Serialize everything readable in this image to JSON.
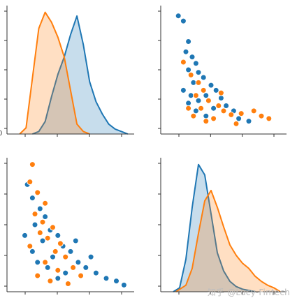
{
  "colors": {
    "blue": "#1f77b4",
    "orange": "#ff7f0e"
  },
  "watermark": "知乎 @Lucy-Fintech",
  "chart_data": [
    {
      "panel": "top-left",
      "type": "area",
      "axis_tick_label": "0",
      "grid": false,
      "series": [
        {
          "color": "blue",
          "x": [
            0.2,
            0.25,
            0.3,
            0.35,
            0.4,
            0.45,
            0.5,
            0.55,
            0.6,
            0.65,
            0.7,
            0.75,
            0.8,
            0.85,
            0.9,
            0.95
          ],
          "y": [
            0.0,
            0.02,
            0.1,
            0.3,
            0.48,
            0.62,
            0.8,
            0.95,
            0.72,
            0.42,
            0.26,
            0.16,
            0.08,
            0.04,
            0.02,
            0.0
          ]
        },
        {
          "color": "orange",
          "x": [
            0.1,
            0.15,
            0.2,
            0.25,
            0.3,
            0.35,
            0.4,
            0.45,
            0.5,
            0.55,
            0.6,
            0.65
          ],
          "y": [
            0.0,
            0.05,
            0.45,
            0.85,
            0.98,
            0.9,
            0.78,
            0.62,
            0.35,
            0.08,
            0.02,
            0.0
          ]
        }
      ]
    },
    {
      "panel": "top-right",
      "type": "scatter",
      "grid": false,
      "series": [
        {
          "color": "blue",
          "points": [
            [
              0.14,
              0.92
            ],
            [
              0.18,
              0.88
            ],
            [
              0.22,
              0.72
            ],
            [
              0.2,
              0.64
            ],
            [
              0.25,
              0.6
            ],
            [
              0.28,
              0.55
            ],
            [
              0.22,
              0.5
            ],
            [
              0.3,
              0.48
            ],
            [
              0.34,
              0.44
            ],
            [
              0.26,
              0.4
            ],
            [
              0.4,
              0.38
            ],
            [
              0.44,
              0.34
            ],
            [
              0.36,
              0.3
            ],
            [
              0.3,
              0.26
            ],
            [
              0.22,
              0.24
            ],
            [
              0.48,
              0.28
            ],
            [
              0.52,
              0.22
            ],
            [
              0.28,
              0.18
            ],
            [
              0.36,
              0.14
            ],
            [
              0.58,
              0.18
            ],
            [
              0.62,
              0.12
            ],
            [
              0.7,
              0.1
            ],
            [
              0.18,
              0.34
            ],
            [
              0.24,
              0.3
            ],
            [
              0.42,
              0.2
            ]
          ]
        },
        {
          "color": "orange",
          "points": [
            [
              0.18,
              0.56
            ],
            [
              0.24,
              0.46
            ],
            [
              0.3,
              0.4
            ],
            [
              0.34,
              0.34
            ],
            [
              0.28,
              0.3
            ],
            [
              0.38,
              0.26
            ],
            [
              0.46,
              0.22
            ],
            [
              0.32,
              0.2
            ],
            [
              0.5,
              0.18
            ],
            [
              0.56,
              0.15
            ],
            [
              0.42,
              0.12
            ],
            [
              0.64,
              0.16
            ],
            [
              0.74,
              0.18
            ],
            [
              0.8,
              0.14
            ],
            [
              0.86,
              0.12
            ],
            [
              0.26,
              0.14
            ],
            [
              0.36,
              0.1
            ],
            [
              0.22,
              0.2
            ],
            [
              0.6,
              0.08
            ],
            [
              0.48,
              0.32
            ]
          ]
        }
      ]
    },
    {
      "panel": "bottom-left",
      "type": "scatter",
      "grid": false,
      "series": [
        {
          "color": "blue",
          "points": [
            [
              0.16,
              0.8
            ],
            [
              0.2,
              0.7
            ],
            [
              0.26,
              0.62
            ],
            [
              0.3,
              0.56
            ],
            [
              0.22,
              0.5
            ],
            [
              0.34,
              0.46
            ],
            [
              0.4,
              0.42
            ],
            [
              0.28,
              0.38
            ],
            [
              0.44,
              0.34
            ],
            [
              0.5,
              0.3
            ],
            [
              0.36,
              0.26
            ],
            [
              0.24,
              0.22
            ],
            [
              0.56,
              0.22
            ],
            [
              0.62,
              0.18
            ],
            [
              0.7,
              0.14
            ],
            [
              0.78,
              0.1
            ],
            [
              0.86,
              0.08
            ],
            [
              0.92,
              0.05
            ],
            [
              0.32,
              0.18
            ],
            [
              0.46,
              0.14
            ],
            [
              0.2,
              0.3
            ],
            [
              0.54,
              0.38
            ],
            [
              0.4,
              0.1
            ],
            [
              0.66,
              0.26
            ],
            [
              0.14,
              0.42
            ]
          ]
        },
        {
          "color": "orange",
          "points": [
            [
              0.2,
              0.95
            ],
            [
              0.18,
              0.82
            ],
            [
              0.24,
              0.74
            ],
            [
              0.3,
              0.66
            ],
            [
              0.22,
              0.58
            ],
            [
              0.28,
              0.52
            ],
            [
              0.36,
              0.48
            ],
            [
              0.26,
              0.44
            ],
            [
              0.32,
              0.4
            ],
            [
              0.42,
              0.36
            ],
            [
              0.18,
              0.34
            ],
            [
              0.38,
              0.3
            ],
            [
              0.46,
              0.26
            ],
            [
              0.3,
              0.22
            ],
            [
              0.52,
              0.18
            ],
            [
              0.4,
              0.16
            ],
            [
              0.24,
              0.12
            ],
            [
              0.58,
              0.12
            ],
            [
              0.34,
              0.08
            ],
            [
              0.48,
              0.06
            ]
          ]
        }
      ]
    },
    {
      "panel": "bottom-right",
      "type": "area",
      "grid": false,
      "series": [
        {
          "color": "blue",
          "x": [
            0.1,
            0.15,
            0.2,
            0.25,
            0.3,
            0.35,
            0.4,
            0.45,
            0.5,
            0.55,
            0.6,
            0.65,
            0.7,
            0.75
          ],
          "y": [
            0.0,
            0.03,
            0.25,
            0.65,
            0.98,
            0.9,
            0.6,
            0.3,
            0.16,
            0.08,
            0.04,
            0.02,
            0.01,
            0.0
          ]
        },
        {
          "color": "orange",
          "x": [
            0.12,
            0.2,
            0.25,
            0.3,
            0.35,
            0.4,
            0.45,
            0.5,
            0.55,
            0.6,
            0.65,
            0.7,
            0.75,
            0.8,
            0.85,
            0.9,
            0.95
          ],
          "y": [
            0.0,
            0.05,
            0.18,
            0.45,
            0.7,
            0.78,
            0.65,
            0.5,
            0.36,
            0.28,
            0.22,
            0.18,
            0.12,
            0.08,
            0.05,
            0.03,
            0.0
          ]
        }
      ]
    }
  ]
}
